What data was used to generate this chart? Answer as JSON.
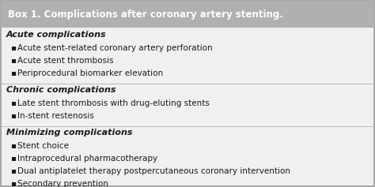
{
  "title": "Box 1. Complications after coronary artery stenting.",
  "title_bg_color": "#b0b0b0",
  "title_text_color": "#ffffff",
  "box_bg_color": "#f0f0f0",
  "box_border_color": "#999999",
  "divider_color": "#bbbbbb",
  "body_text_color": "#1a1a1a",
  "sections": [
    {
      "heading": "Acute complications",
      "items": [
        "Acute stent-related coronary artery perforation",
        "Acute stent thrombosis",
        "Periprocedural biomarker elevation"
      ]
    },
    {
      "heading": "Chronic complications",
      "items": [
        "Late stent thrombosis with drug-eluting stents",
        "In-stent restenosis"
      ]
    },
    {
      "heading": "Minimizing complications",
      "items": [
        "Stent choice",
        "Intraprocedural pharmacotherapy",
        "Dual antiplatelet therapy postpercutaneous coronary intervention",
        "Secondary prevention"
      ]
    }
  ],
  "title_fontsize": 8.5,
  "heading_fontsize": 8.0,
  "item_fontsize": 7.5,
  "bullet": "▪  ",
  "fig_width": 4.74,
  "fig_height": 2.37,
  "dpi": 100
}
